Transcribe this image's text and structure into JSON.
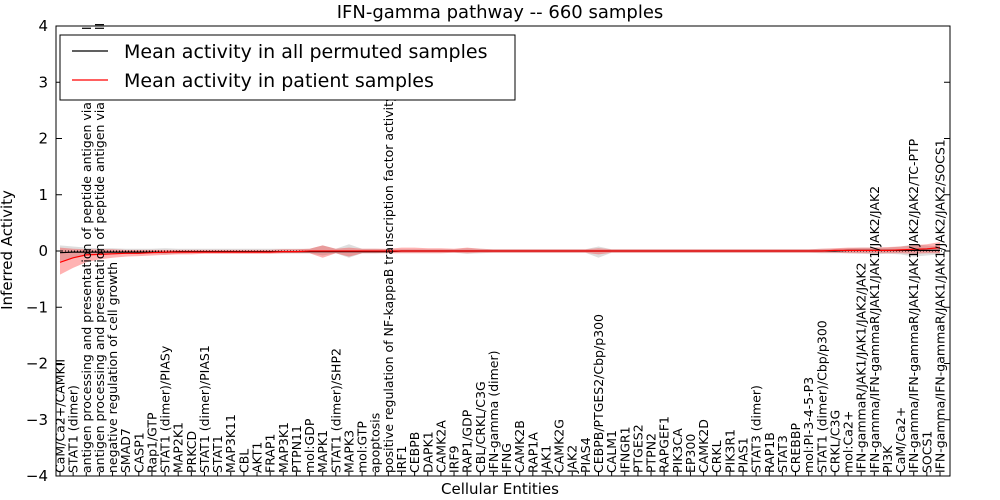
{
  "chart_data": {
    "type": "line",
    "title": "IFN-gamma pathway -- 660 samples",
    "xlabel": "Cellular Entities",
    "ylabel": "Inferred Activity",
    "ylim": [
      -4,
      4
    ],
    "yticks": [
      "4",
      "3",
      "2",
      "1",
      "0",
      "−1",
      "−2",
      "−3",
      "−4"
    ],
    "yticks_values": [
      4,
      3,
      2,
      1,
      0,
      -1,
      -2,
      -3,
      -4
    ],
    "grid": false,
    "legend_position": "upper-left",
    "categories": [
      "CaM/Ca2+/CAMKII",
      "STAT1 (dimer)",
      "antigen processing and presentation of peptide antigen via MHC class I",
      "antigen processing and presentation of peptide antigen via MHC class II",
      "negative regulation of cell growth",
      "SMAD7",
      "CASP1",
      "Rap1/GTP",
      "STAT1 (dimer)/PIASy",
      "MAP2K1",
      "PRKCD",
      "STAT1 (dimer)/PIAS1",
      "STAT1",
      "MAP3K11",
      "CBL",
      "AKT1",
      "FRAP1",
      "MAP3K1",
      "PTPN11",
      "mol:GDP",
      "MAPK1",
      "STAT1 (dimer)/SHP2",
      "MAPK3",
      "mol:GTP",
      "apoptosis",
      "positive regulation of NF-kappaB transcription factor activity",
      "IRF1",
      "CEBPB",
      "DAPK1",
      "CAMK2A",
      "IRF9",
      "RAP1/GDP",
      "CBL/CRKL/C3G",
      "IFN-gamma (dimer)",
      "IFNG",
      "CAMK2B",
      "RAP1A",
      "JAK1",
      "CAMK2G",
      "JAK2",
      "PIAS4",
      "CEBPB/PTGES2/Cbp/p300",
      "CALM1",
      "IFNGR1",
      "PTGES2",
      "PTPN2",
      "RAPGEF1",
      "PIK3CA",
      "EP300",
      "CAMK2D",
      "CRKL",
      "PIK3R1",
      "PIAS1",
      "STAT3 (dimer)",
      "RAP1B",
      "STAT3",
      "CREBBP",
      "mol:PI-3-4-5-P3",
      "STAT1 (dimer)/Cbp/p300",
      "CRKL/C3G",
      "mol:Ca2+",
      "IFN-gammaR/JAK1/JAK1/JAK2/JAK2",
      "IFN-gamma/IFN-gammaR/JAK1/JAK1/JAK2/JAK2",
      "PI3K",
      "CaM/Ca2+",
      "IFN-gamma/IFN-gammaR/JAK1/JAK1/JAK2/JAK2/TC-PTP",
      "SOCS1",
      "IFN-gamma/IFN-gammaR/JAK1/JAK1/JAK2/JAK2/SOCS1"
    ],
    "series": [
      {
        "name": "Mean activity in all permuted samples",
        "color": "#000000",
        "values": [
          -0.03,
          -0.02,
          -0.02,
          -0.02,
          -0.02,
          -0.02,
          -0.02,
          -0.02,
          -0.02,
          -0.01,
          -0.01,
          -0.01,
          -0.01,
          -0.01,
          -0.01,
          -0.01,
          -0.01,
          -0.01,
          -0.01,
          -0.01,
          -0.01,
          -0.01,
          -0.01,
          -0.01,
          -0.01,
          -0.01,
          0.0,
          0.0,
          0.0,
          0.0,
          0.0,
          0.0,
          0.0,
          0.0,
          0.0,
          0.0,
          0.0,
          0.0,
          0.0,
          0.0,
          0.0,
          0.0,
          0.0,
          0.0,
          0.0,
          0.0,
          0.0,
          0.0,
          0.0,
          0.0,
          0.0,
          0.0,
          0.0,
          0.0,
          0.0,
          0.0,
          0.0,
          0.0,
          0.0,
          0.0,
          0.01,
          0.01,
          0.01,
          0.01,
          0.01,
          0.01,
          0.01,
          0.01
        ],
        "band_low": [
          -0.18,
          -0.12,
          -0.08,
          -0.07,
          -0.06,
          -0.05,
          -0.05,
          -0.04,
          -0.06,
          -0.05,
          -0.04,
          -0.04,
          -0.04,
          -0.04,
          -0.04,
          -0.04,
          -0.04,
          -0.04,
          -0.04,
          -0.04,
          -0.08,
          -0.04,
          -0.12,
          -0.04,
          -0.04,
          -0.03,
          -0.03,
          -0.03,
          -0.03,
          -0.03,
          -0.03,
          -0.05,
          -0.04,
          -0.03,
          -0.03,
          -0.03,
          -0.03,
          -0.03,
          -0.03,
          -0.03,
          -0.03,
          -0.12,
          -0.03,
          -0.03,
          -0.03,
          -0.03,
          -0.03,
          -0.03,
          -0.03,
          -0.03,
          -0.03,
          -0.03,
          -0.03,
          -0.03,
          -0.03,
          -0.03,
          -0.03,
          -0.03,
          -0.04,
          -0.04,
          -0.04,
          -0.05,
          -0.06,
          -0.05,
          -0.06,
          -0.1,
          -0.08,
          -0.06
        ],
        "band_high": [
          0.1,
          0.08,
          0.06,
          0.05,
          0.05,
          0.04,
          0.04,
          0.04,
          0.05,
          0.04,
          0.04,
          0.04,
          0.04,
          0.04,
          0.04,
          0.04,
          0.04,
          0.04,
          0.04,
          0.04,
          0.1,
          0.04,
          0.12,
          0.04,
          0.04,
          0.03,
          0.03,
          0.03,
          0.03,
          0.03,
          0.03,
          0.05,
          0.04,
          0.03,
          0.03,
          0.03,
          0.03,
          0.03,
          0.03,
          0.03,
          0.03,
          0.08,
          0.03,
          0.03,
          0.03,
          0.03,
          0.03,
          0.03,
          0.03,
          0.03,
          0.03,
          0.03,
          0.03,
          0.03,
          0.03,
          0.03,
          0.03,
          0.03,
          0.04,
          0.04,
          0.05,
          0.06,
          0.06,
          0.06,
          0.08,
          0.12,
          0.1,
          0.08
        ]
      },
      {
        "name": "Mean activity in patient samples",
        "color": "#ff0000",
        "values": [
          -0.2,
          -0.12,
          -0.07,
          -0.06,
          -0.05,
          -0.04,
          -0.04,
          -0.03,
          -0.02,
          -0.02,
          -0.02,
          -0.02,
          -0.02,
          -0.02,
          -0.02,
          -0.02,
          -0.02,
          -0.01,
          -0.01,
          0.0,
          0.0,
          0.0,
          0.0,
          0.0,
          0.0,
          0.0,
          0.0,
          0.0,
          0.0,
          0.0,
          0.0,
          0.0,
          0.0,
          0.0,
          0.0,
          0.0,
          0.0,
          0.0,
          0.0,
          0.0,
          0.0,
          0.0,
          0.0,
          0.0,
          0.0,
          0.0,
          0.0,
          0.0,
          0.0,
          0.0,
          0.0,
          0.0,
          0.0,
          0.0,
          0.0,
          0.0,
          0.0,
          0.0,
          0.0,
          0.01,
          0.01,
          0.01,
          0.01,
          0.01,
          0.02,
          0.03,
          0.04,
          0.06
        ],
        "band_low": [
          -0.42,
          -0.3,
          -0.2,
          -0.15,
          -0.12,
          -0.1,
          -0.09,
          -0.08,
          -0.07,
          -0.06,
          -0.06,
          -0.05,
          -0.05,
          -0.05,
          -0.05,
          -0.05,
          -0.05,
          -0.04,
          -0.04,
          -0.04,
          -0.12,
          -0.04,
          -0.1,
          -0.04,
          -0.04,
          -0.04,
          -0.04,
          -0.04,
          -0.04,
          -0.04,
          -0.03,
          -0.04,
          -0.03,
          -0.03,
          -0.03,
          -0.03,
          -0.03,
          -0.03,
          -0.03,
          -0.03,
          -0.03,
          -0.06,
          -0.03,
          -0.03,
          -0.03,
          -0.03,
          -0.03,
          -0.03,
          -0.03,
          -0.03,
          -0.03,
          -0.03,
          -0.03,
          -0.03,
          -0.03,
          -0.03,
          -0.03,
          -0.03,
          -0.03,
          -0.03,
          -0.04,
          -0.04,
          -0.04,
          -0.04,
          -0.04,
          -0.05,
          -0.04,
          -0.04
        ],
        "band_high": [
          0.06,
          0.04,
          0.03,
          0.03,
          0.03,
          0.02,
          0.02,
          0.02,
          0.02,
          0.02,
          0.02,
          0.02,
          0.02,
          0.02,
          0.02,
          0.02,
          0.02,
          0.03,
          0.03,
          0.04,
          0.1,
          0.04,
          0.06,
          0.04,
          0.04,
          0.04,
          0.06,
          0.06,
          0.05,
          0.05,
          0.04,
          0.06,
          0.04,
          0.03,
          0.03,
          0.03,
          0.03,
          0.03,
          0.03,
          0.03,
          0.03,
          0.05,
          0.03,
          0.03,
          0.03,
          0.03,
          0.03,
          0.03,
          0.03,
          0.03,
          0.03,
          0.03,
          0.03,
          0.03,
          0.03,
          0.03,
          0.03,
          0.03,
          0.04,
          0.05,
          0.06,
          0.06,
          0.06,
          0.07,
          0.08,
          0.1,
          0.12,
          0.16
        ]
      }
    ]
  }
}
